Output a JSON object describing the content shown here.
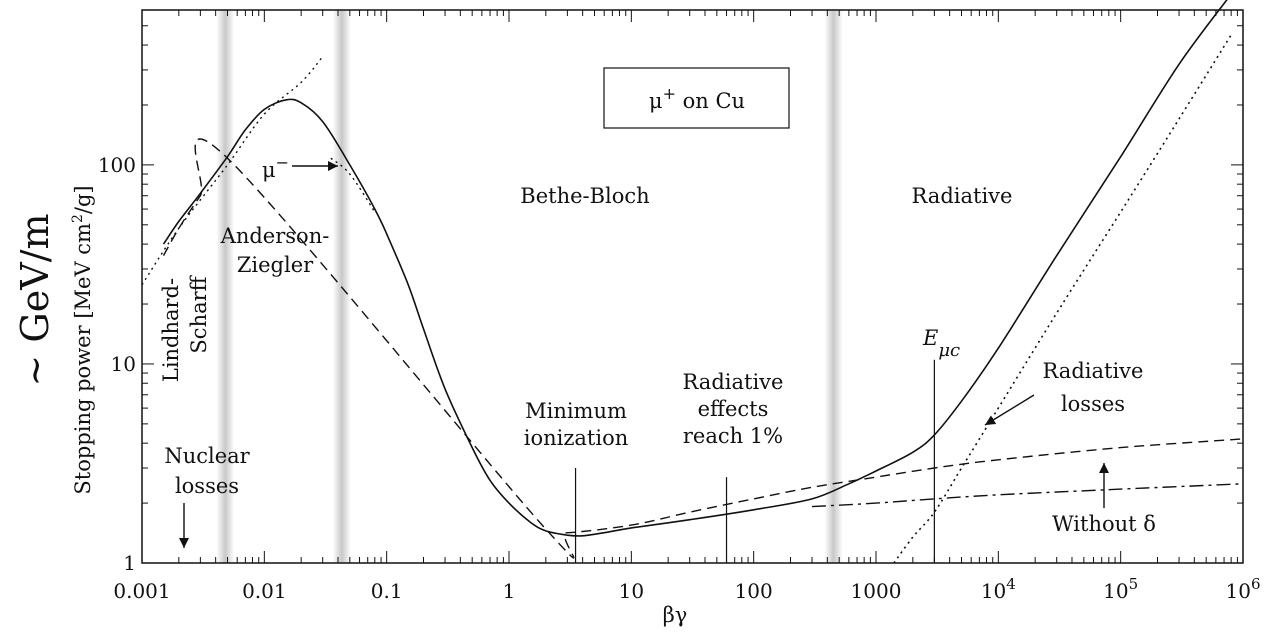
{
  "chart_data": {
    "type": "line",
    "xscale": "log",
    "yscale": "log",
    "xlim": [
      0.001,
      1000000
    ],
    "ylim": [
      1,
      600
    ],
    "xlabel": "βγ",
    "ylabel": "Stopping power [MeV cm²/g]",
    "ylabel_units_prefix": "Stopping power [MeV cm",
    "ylabel_units_sup": "2",
    "ylabel_units_suffix": "/g]",
    "ylabel_big": "~ GeV/m",
    "x_ticks": [
      {
        "value": 0.001,
        "label": "0.001"
      },
      {
        "value": 0.01,
        "label": "0.01"
      },
      {
        "value": 0.1,
        "label": "0.1"
      },
      {
        "value": 1,
        "label": "1"
      },
      {
        "value": 10,
        "label": "10"
      },
      {
        "value": 100,
        "label": "100"
      },
      {
        "value": 1000,
        "label": "1000"
      },
      {
        "value": 10000,
        "label_base": "10",
        "label_exp": "4"
      },
      {
        "value": 100000,
        "label_base": "10",
        "label_exp": "5"
      },
      {
        "value": 1000000,
        "label_base": "10",
        "label_exp": "6"
      }
    ],
    "y_ticks": [
      {
        "value": 1,
        "label": "1"
      },
      {
        "value": 10,
        "label": "10"
      },
      {
        "value": 100,
        "label": "100"
      }
    ],
    "region_bands": [
      0.0048,
      0.043,
      450
    ],
    "series": [
      {
        "style": "solid",
        "points": [
          [
            0.0015,
            40
          ],
          [
            0.002,
            52
          ],
          [
            0.003,
            72
          ],
          [
            0.005,
            110
          ],
          [
            0.007,
            150
          ],
          [
            0.01,
            190
          ],
          [
            0.015,
            212
          ],
          [
            0.02,
            205
          ],
          [
            0.03,
            165
          ],
          [
            0.05,
            100
          ],
          [
            0.08,
            60
          ],
          [
            0.1,
            45
          ],
          [
            0.15,
            25
          ],
          [
            0.2,
            15
          ],
          [
            0.3,
            7.5
          ],
          [
            0.5,
            3.8
          ],
          [
            0.7,
            2.6
          ],
          [
            1,
            2.0
          ],
          [
            1.5,
            1.6
          ],
          [
            2,
            1.45
          ],
          [
            3,
            1.38
          ],
          [
            4,
            1.37
          ],
          [
            6,
            1.42
          ],
          [
            10,
            1.5
          ],
          [
            30,
            1.65
          ],
          [
            100,
            1.85
          ],
          [
            300,
            2.1
          ],
          [
            600,
            2.5
          ],
          [
            1000,
            2.9
          ],
          [
            2000,
            3.6
          ],
          [
            3000,
            4.4
          ],
          [
            5000,
            6.5
          ],
          [
            10000,
            12
          ],
          [
            30000,
            35
          ],
          [
            100000,
            110
          ],
          [
            300000,
            320
          ],
          [
            800000,
            720
          ]
        ]
      },
      {
        "style": "dashed",
        "points": [
          [
            0.0015,
            35
          ],
          [
            0.002,
            48
          ],
          [
            0.003,
            70
          ],
          [
            0.005,
            108
          ],
          [
            2,
            1.48
          ],
          [
            3,
            1.42
          ],
          [
            10,
            1.55
          ],
          [
            30,
            1.8
          ],
          [
            100,
            2.1
          ],
          [
            300,
            2.4
          ],
          [
            1000,
            2.7
          ],
          [
            3000,
            3.0
          ],
          [
            10000,
            3.3
          ],
          [
            100000,
            3.8
          ],
          [
            1000000,
            4.2
          ]
        ]
      },
      {
        "style": "dashdot",
        "points": [
          [
            300,
            1.92
          ],
          [
            1000,
            2.0
          ],
          [
            3000,
            2.1
          ],
          [
            10000,
            2.2
          ],
          [
            100000,
            2.35
          ],
          [
            1000000,
            2.5
          ]
        ]
      },
      {
        "style": "dotted-radiative",
        "points": [
          [
            1400,
            1
          ],
          [
            2000,
            1.35
          ],
          [
            3000,
            1.8
          ],
          [
            5000,
            3.0
          ],
          [
            10000,
            6.0
          ],
          [
            30000,
            18
          ],
          [
            100000,
            58
          ],
          [
            300000,
            170
          ],
          [
            800000,
            450
          ]
        ]
      },
      {
        "style": "dotted-lowE",
        "points": [
          [
            0.001,
            25
          ],
          [
            0.002,
            48
          ],
          [
            0.005,
            100
          ],
          [
            0.01,
            180
          ],
          [
            0.02,
            260
          ],
          [
            0.03,
            350
          ]
        ]
      },
      {
        "style": "dotted-muminus",
        "points": [
          [
            0.035,
            108
          ],
          [
            0.05,
            90
          ],
          [
            0.08,
            58
          ]
        ]
      }
    ],
    "annotations": {
      "title_box": {
        "mu": "μ",
        "sup": "+",
        "text": " on Cu"
      },
      "mu_minus": {
        "mu": "μ",
        "sup": "−"
      },
      "bethe_bloch": "Bethe-Bloch",
      "radiative": "Radiative",
      "anderson": [
        "Anderson-",
        "Ziegler"
      ],
      "lindhard": [
        "Lindhard-",
        "Scharff"
      ],
      "min_ion": [
        "Minimum",
        "ionization"
      ],
      "rad_eff": [
        "Radiative",
        "effects",
        "reach 1%"
      ],
      "rad_losses": [
        "Radiative",
        "losses"
      ],
      "without_delta": "Without δ",
      "nuclear": [
        "Nuclear",
        "losses"
      ],
      "emuc": {
        "base": "E",
        "sub": "μc"
      }
    },
    "vertical_markers": [
      {
        "x": 3.5,
        "y_top": 3.0
      },
      {
        "x": 60,
        "y_top": 2.7
      },
      {
        "x": 3000,
        "y_top": 10.5
      }
    ]
  }
}
